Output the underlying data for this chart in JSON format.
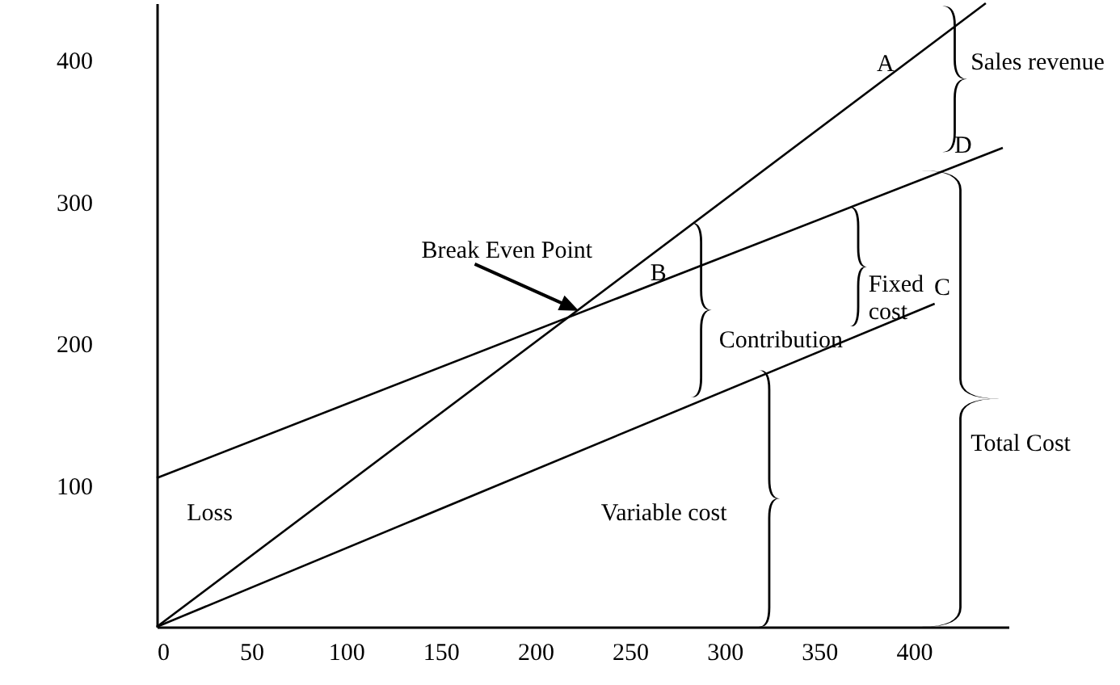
{
  "chart_data": {
    "type": "line",
    "series": [
      {
        "color": "#000000",
        "x": [
          0,
          438
        ],
        "values": [
          0,
          440
        ]
      },
      {
        "color": "#000000",
        "x": [
          0,
          447
        ],
        "values": [
          105,
          338
        ]
      },
      {
        "color": "#000000",
        "x": [
          0,
          411
        ],
        "values": [
          0,
          228
        ]
      }
    ],
    "xlim": [
      0,
      450
    ],
    "ylim": [
      0,
      440
    ],
    "xticks": [
      0,
      50,
      100,
      150,
      200,
      250,
      300,
      350,
      400
    ],
    "yticks": [
      100,
      200,
      300,
      400
    ],
    "annotations": [
      "A",
      "Sales revenue",
      "D",
      "Break Even Point",
      "B",
      "Contribution",
      "Fixed cost",
      "C",
      "Total Cost",
      "Loss",
      "Variable cost"
    ]
  }
}
